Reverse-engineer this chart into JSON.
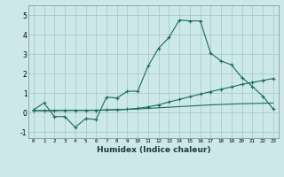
{
  "background_color": "#cce8e8",
  "grid_color": "#aacccc",
  "line_color": "#1a6b5a",
  "line1_x": [
    0,
    1,
    2,
    3,
    4,
    5,
    6,
    7,
    8,
    9,
    10,
    11,
    12,
    13,
    14,
    15,
    16,
    17,
    18,
    19,
    20,
    21,
    22,
    23
  ],
  "line1_y": [
    0.15,
    0.5,
    -0.2,
    -0.2,
    -0.75,
    -0.3,
    -0.35,
    0.8,
    0.75,
    1.1,
    1.1,
    2.4,
    3.3,
    3.85,
    4.75,
    4.7,
    4.7,
    3.05,
    2.65,
    2.45,
    1.8,
    1.35,
    0.85,
    0.2
  ],
  "line2_x": [
    0,
    1,
    2,
    3,
    4,
    5,
    6,
    7,
    8,
    9,
    10,
    11,
    12,
    13,
    14,
    15,
    16,
    17,
    18,
    19,
    20,
    21,
    22,
    23
  ],
  "line2_y": [
    0.1,
    0.1,
    0.1,
    0.12,
    0.12,
    0.12,
    0.12,
    0.14,
    0.15,
    0.18,
    0.22,
    0.3,
    0.4,
    0.55,
    0.68,
    0.82,
    0.95,
    1.08,
    1.2,
    1.32,
    1.45,
    1.55,
    1.65,
    1.75
  ],
  "line3_x": [
    0,
    3,
    4,
    5,
    6,
    7,
    8,
    9,
    10,
    11,
    12,
    13,
    14,
    15,
    16,
    17,
    18,
    19,
    20,
    21,
    22,
    23
  ],
  "line3_y": [
    0.1,
    0.12,
    0.12,
    0.12,
    0.13,
    0.14,
    0.15,
    0.17,
    0.19,
    0.22,
    0.25,
    0.28,
    0.31,
    0.34,
    0.37,
    0.4,
    0.42,
    0.44,
    0.46,
    0.47,
    0.48,
    0.5
  ],
  "xlabel": "Humidex (Indice chaleur)",
  "xlim": [
    -0.5,
    23.5
  ],
  "ylim": [
    -1.3,
    5.5
  ],
  "yticks": [
    -1,
    0,
    1,
    2,
    3,
    4,
    5
  ],
  "xticks": [
    0,
    1,
    2,
    3,
    4,
    5,
    6,
    7,
    8,
    9,
    10,
    11,
    12,
    13,
    14,
    15,
    16,
    17,
    18,
    19,
    20,
    21,
    22,
    23
  ]
}
